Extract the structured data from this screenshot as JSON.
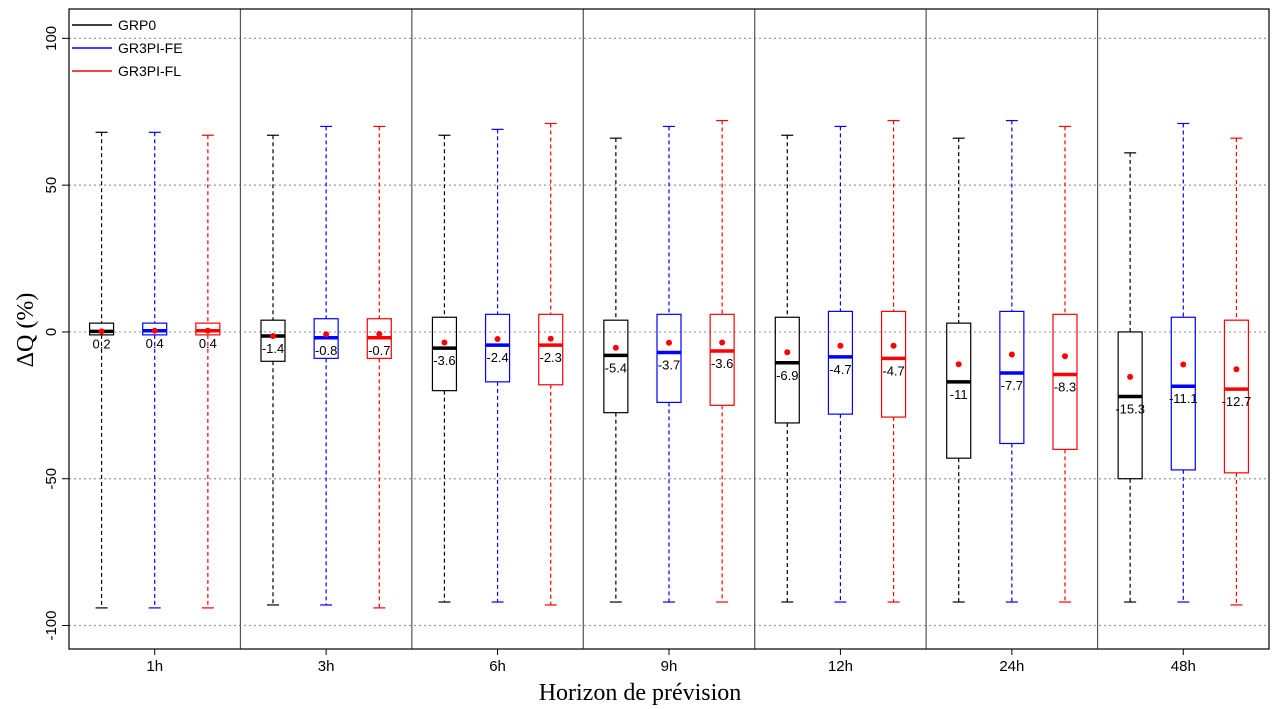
{
  "chart_data": {
    "type": "box",
    "xlabel": "Horizon de prévision",
    "ylabel": "ΔQ (%)",
    "ylim": [
      -108,
      110
    ],
    "yticks": [
      -100,
      -50,
      0,
      50,
      100
    ],
    "reference_lines": [
      -100,
      -50,
      0,
      50,
      100
    ],
    "grid": "dotted horizontal lines at reference values; solid vertical separators between horizons",
    "legend_position": "top-left",
    "categories": [
      "1h",
      "3h",
      "6h",
      "9h",
      "12h",
      "24h",
      "48h"
    ],
    "series": [
      {
        "name": "GRP0",
        "color": "#000000",
        "boxes": [
          {
            "whisker_low": -94,
            "q1": -1,
            "median": 0.2,
            "q3": 3,
            "whisker_high": 68,
            "mean": 0.2,
            "label": "0.2"
          },
          {
            "whisker_low": -93,
            "q1": -10,
            "median": -1.4,
            "q3": 4,
            "whisker_high": 67,
            "mean": -1.4,
            "label": "-1.4"
          },
          {
            "whisker_low": -92,
            "q1": -20,
            "median": -5.5,
            "q3": 5,
            "whisker_high": 67,
            "mean": -3.6,
            "label": "-3.6"
          },
          {
            "whisker_low": -92,
            "q1": -27.5,
            "median": -8,
            "q3": 4,
            "whisker_high": 66,
            "mean": -5.4,
            "label": "-5.4"
          },
          {
            "whisker_low": -92,
            "q1": -31,
            "median": -10.5,
            "q3": 5,
            "whisker_high": 67,
            "mean": -6.9,
            "label": "-6.9"
          },
          {
            "whisker_low": -92,
            "q1": -43,
            "median": -17,
            "q3": 3,
            "whisker_high": 66,
            "mean": -11,
            "label": "-11"
          },
          {
            "whisker_low": -92,
            "q1": -50,
            "median": -22,
            "q3": 0,
            "whisker_high": 61,
            "mean": -15.3,
            "label": "-15.3"
          }
        ]
      },
      {
        "name": "GR3PI-FE",
        "color": "#0000ff",
        "boxes": [
          {
            "whisker_low": -94,
            "q1": -1,
            "median": 0.4,
            "q3": 3,
            "whisker_high": 68,
            "mean": 0.4,
            "label": "0.4"
          },
          {
            "whisker_low": -93,
            "q1": -9,
            "median": -2,
            "q3": 4.5,
            "whisker_high": 70,
            "mean": -0.8,
            "label": "-0.8"
          },
          {
            "whisker_low": -92,
            "q1": -17,
            "median": -4.5,
            "q3": 6,
            "whisker_high": 69,
            "mean": -2.4,
            "label": "-2.4"
          },
          {
            "whisker_low": -92,
            "q1": -24,
            "median": -7,
            "q3": 6,
            "whisker_high": 70,
            "mean": -3.7,
            "label": "-3.7"
          },
          {
            "whisker_low": -92,
            "q1": -28,
            "median": -8.5,
            "q3": 7,
            "whisker_high": 70,
            "mean": -4.7,
            "label": "-4.7"
          },
          {
            "whisker_low": -92,
            "q1": -38,
            "median": -14,
            "q3": 7,
            "whisker_high": 72,
            "mean": -7.7,
            "label": "-7.7"
          },
          {
            "whisker_low": -92,
            "q1": -47,
            "median": -18.5,
            "q3": 5,
            "whisker_high": 71,
            "mean": -11.1,
            "label": "-11.1"
          }
        ]
      },
      {
        "name": "GR3PI-FL",
        "color": "#ff0000",
        "boxes": [
          {
            "whisker_low": -94,
            "q1": -1,
            "median": 0.4,
            "q3": 3,
            "whisker_high": 67,
            "mean": 0.4,
            "label": "0.4"
          },
          {
            "whisker_low": -94,
            "q1": -9,
            "median": -2,
            "q3": 4.5,
            "whisker_high": 70,
            "mean": -0.7,
            "label": "-0.7"
          },
          {
            "whisker_low": -93,
            "q1": -18,
            "median": -4.5,
            "q3": 6,
            "whisker_high": 71,
            "mean": -2.3,
            "label": "-2.3"
          },
          {
            "whisker_low": -92,
            "q1": -25,
            "median": -6.5,
            "q3": 6,
            "whisker_high": 72,
            "mean": -3.6,
            "label": "-3.6"
          },
          {
            "whisker_low": -92,
            "q1": -29,
            "median": -9,
            "q3": 7,
            "whisker_high": 72,
            "mean": -4.7,
            "label": "-4.7"
          },
          {
            "whisker_low": -92,
            "q1": -40,
            "median": -14.5,
            "q3": 6,
            "whisker_high": 70,
            "mean": -8.3,
            "label": "-8.3"
          },
          {
            "whisker_low": -93,
            "q1": -48,
            "median": -19.5,
            "q3": 4,
            "whisker_high": 66,
            "mean": -12.7,
            "label": "-12.7"
          }
        ]
      }
    ]
  }
}
